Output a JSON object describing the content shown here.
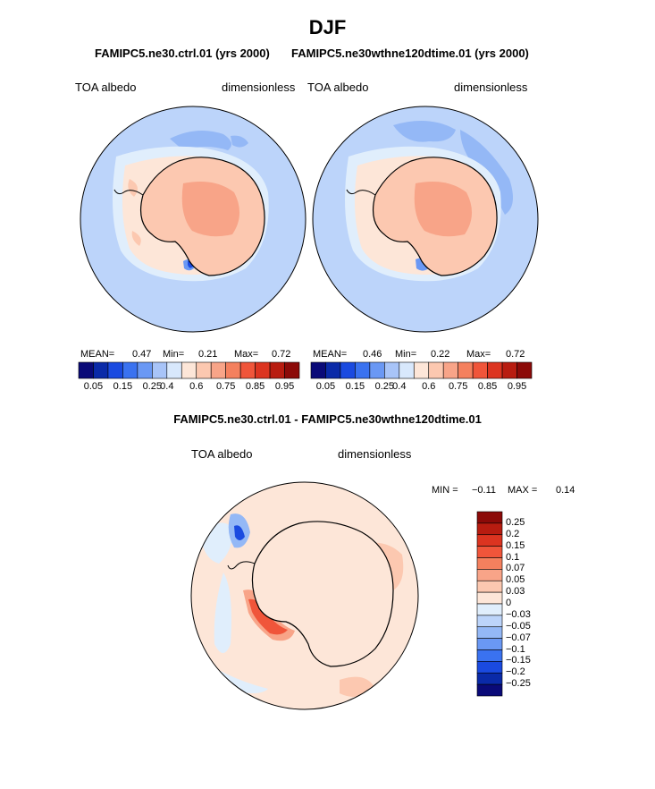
{
  "figure": {
    "season": "DJF",
    "case1_title": "FAMIPC5.ne30.ctrl.01 (yrs 2000)",
    "case2_title": "FAMIPC5.ne30wthne120dtime.01 (yrs 2000)",
    "diff_title": "FAMIPC5.ne30.ctrl.01 - FAMIPC5.ne30wthne120dtime.01"
  },
  "panels": {
    "left": {
      "variable": "TOA albedo",
      "units": "dimensionless",
      "mean_label": "MEAN=",
      "mean": "0.47",
      "min_label": "Min=",
      "min": "0.21",
      "max_label": "Max=",
      "max": "0.72"
    },
    "right": {
      "variable": "TOA albedo",
      "units": "dimensionless",
      "mean_label": "MEAN=",
      "mean": "0.46",
      "min_label": "Min=",
      "min": "0.22",
      "max_label": "Max=",
      "max": "0.72"
    },
    "diff": {
      "variable": "TOA albedo",
      "units": "dimensionless",
      "min_label": "MIN =",
      "min": "−0.11",
      "max_label": "MAX =",
      "max": "0.14"
    }
  },
  "colorbars": {
    "abs_ticks": [
      "0.05",
      "0.15",
      "0.25",
      "0.4",
      "0.6",
      "0.75",
      "0.85",
      "0.95"
    ],
    "abs_colors": [
      "#0a0a78",
      "#0a2aa8",
      "#1a4ae0",
      "#3a72f0",
      "#6a98f4",
      "#a8c4f8",
      "#d8e8fc",
      "#fde6d8",
      "#fcc8b0",
      "#f8a488",
      "#f4805e",
      "#f0553a",
      "#dc3420",
      "#b81c10",
      "#8c0a08"
    ],
    "diff_labels": [
      "0.25",
      "0.2",
      "0.15",
      "0.1",
      "0.07",
      "0.05",
      "0.03",
      "0",
      "−0.03",
      "−0.05",
      "−0.07",
      "−0.1",
      "−0.15",
      "−0.2",
      "−0.25"
    ],
    "diff_colors": [
      "#8c0a08",
      "#b81c10",
      "#dc3420",
      "#f0553a",
      "#f4805e",
      "#f8a488",
      "#fcc8b0",
      "#fde6d8",
      "#e0eefc",
      "#bcd4fa",
      "#94b8f6",
      "#6a98f4",
      "#3a72f0",
      "#1a4ae0",
      "#0a2aa8",
      "#0a0a78"
    ]
  },
  "chart_data": [
    {
      "type": "heatmap",
      "title": "FAMIPC5.ne30.ctrl.01 (yrs 2000)",
      "projection": "south polar stereographic",
      "variable": "TOA albedo",
      "units": "dimensionless",
      "mean": 0.47,
      "min": 0.21,
      "max": 0.72,
      "levels": [
        0.05,
        0.1,
        0.15,
        0.2,
        0.25,
        0.3,
        0.4,
        0.5,
        0.6,
        0.7,
        0.75,
        0.8,
        0.85,
        0.9,
        0.95
      ]
    },
    {
      "type": "heatmap",
      "title": "FAMIPC5.ne30wthne120dtime.01 (yrs 2000)",
      "projection": "south polar stereographic",
      "variable": "TOA albedo",
      "units": "dimensionless",
      "mean": 0.46,
      "min": 0.22,
      "max": 0.72,
      "levels": [
        0.05,
        0.1,
        0.15,
        0.2,
        0.25,
        0.3,
        0.4,
        0.5,
        0.6,
        0.7,
        0.75,
        0.8,
        0.85,
        0.9,
        0.95
      ]
    },
    {
      "type": "heatmap",
      "title": "FAMIPC5.ne30.ctrl.01 - FAMIPC5.ne30wthne120dtime.01",
      "projection": "south polar stereographic",
      "variable": "TOA albedo",
      "units": "dimensionless",
      "min": -0.11,
      "max": 0.14,
      "levels": [
        -0.25,
        -0.2,
        -0.15,
        -0.1,
        -0.07,
        -0.05,
        -0.03,
        0,
        0.03,
        0.05,
        0.07,
        0.1,
        0.15,
        0.2,
        0.25
      ]
    }
  ]
}
